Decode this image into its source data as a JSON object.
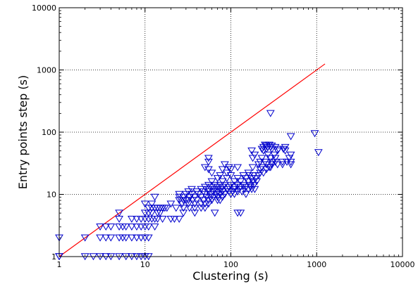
{
  "chart_data": {
    "type": "scatter",
    "xlabel": "Clustering (s)",
    "ylabel": "Entry points step (s)",
    "x_scale": "log",
    "y_scale": "log",
    "xlim": [
      1,
      10000
    ],
    "ylim": [
      1,
      10000
    ],
    "x_ticks": [
      "1",
      "10",
      "100",
      "1000",
      "10000"
    ],
    "y_ticks": [
      "1",
      "10",
      "100",
      "1000",
      "10000"
    ],
    "grid": true,
    "marker": "triangle-down",
    "colors": {
      "points": "#0000cc",
      "reference_line": "#ff0000"
    },
    "reference_line": {
      "x": [
        1,
        1250
      ],
      "y": [
        1,
        1250
      ]
    },
    "points": [
      [
        1,
        1
      ],
      [
        1,
        1
      ],
      [
        1,
        2
      ],
      [
        2,
        1
      ],
      [
        2,
        2
      ],
      [
        2.5,
        1
      ],
      [
        3,
        1
      ],
      [
        3.5,
        1
      ],
      [
        4,
        1
      ],
      [
        5,
        1
      ],
      [
        6,
        1
      ],
      [
        7,
        1
      ],
      [
        8,
        1
      ],
      [
        9,
        1
      ],
      [
        10,
        1
      ],
      [
        11,
        1
      ],
      [
        3,
        2
      ],
      [
        3.5,
        2
      ],
      [
        4,
        2
      ],
      [
        5,
        2
      ],
      [
        5.5,
        2
      ],
      [
        6,
        2
      ],
      [
        7,
        2
      ],
      [
        8,
        2
      ],
      [
        9,
        2
      ],
      [
        10,
        2
      ],
      [
        11,
        2
      ],
      [
        3,
        3
      ],
      [
        3.5,
        3
      ],
      [
        4,
        3
      ],
      [
        5,
        3
      ],
      [
        5.5,
        3
      ],
      [
        6,
        3
      ],
      [
        7,
        3
      ],
      [
        8,
        3
      ],
      [
        9,
        3
      ],
      [
        10,
        3
      ],
      [
        11,
        3
      ],
      [
        13,
        3
      ],
      [
        5,
        4
      ],
      [
        7,
        4
      ],
      [
        8,
        4
      ],
      [
        9,
        4
      ],
      [
        10,
        4
      ],
      [
        11,
        4
      ],
      [
        12,
        4
      ],
      [
        13,
        4
      ],
      [
        14,
        4
      ],
      [
        16,
        4
      ],
      [
        20,
        4
      ],
      [
        22,
        4
      ],
      [
        25,
        4
      ],
      [
        5,
        5
      ],
      [
        10,
        5
      ],
      [
        11,
        5
      ],
      [
        12,
        5
      ],
      [
        14,
        5
      ],
      [
        15,
        5
      ],
      [
        28,
        5
      ],
      [
        38,
        5
      ],
      [
        65,
        5
      ],
      [
        120,
        5
      ],
      [
        130,
        5
      ],
      [
        11,
        6
      ],
      [
        12,
        6
      ],
      [
        13,
        6
      ],
      [
        14,
        6
      ],
      [
        15,
        6
      ],
      [
        16,
        6
      ],
      [
        17,
        6
      ],
      [
        18,
        6
      ],
      [
        23,
        6
      ],
      [
        28,
        6
      ],
      [
        33,
        6
      ],
      [
        38,
        6
      ],
      [
        45,
        6
      ],
      [
        50,
        6
      ],
      [
        10,
        7
      ],
      [
        12,
        7
      ],
      [
        20,
        7
      ],
      [
        27,
        7
      ],
      [
        32,
        7
      ],
      [
        38,
        7
      ],
      [
        45,
        7
      ],
      [
        50,
        7
      ],
      [
        55,
        7
      ],
      [
        25,
        8
      ],
      [
        28,
        8
      ],
      [
        30,
        8
      ],
      [
        32,
        8
      ],
      [
        36,
        8
      ],
      [
        40,
        8
      ],
      [
        48,
        8
      ],
      [
        55,
        8
      ],
      [
        60,
        8
      ],
      [
        70,
        8
      ],
      [
        75,
        8
      ],
      [
        13,
        9
      ],
      [
        25,
        9
      ],
      [
        28,
        9
      ],
      [
        33,
        9
      ],
      [
        38,
        9
      ],
      [
        45,
        9
      ],
      [
        52,
        9
      ],
      [
        58,
        9
      ],
      [
        63,
        9
      ],
      [
        70,
        9
      ],
      [
        80,
        9
      ],
      [
        25,
        10
      ],
      [
        30,
        10
      ],
      [
        35,
        10
      ],
      [
        42,
        10
      ],
      [
        50,
        10
      ],
      [
        58,
        10
      ],
      [
        68,
        10
      ],
      [
        75,
        10
      ],
      [
        85,
        10
      ],
      [
        100,
        10
      ],
      [
        110,
        10
      ],
      [
        150,
        10
      ],
      [
        32,
        11
      ],
      [
        40,
        11
      ],
      [
        48,
        11
      ],
      [
        55,
        11
      ],
      [
        62,
        11
      ],
      [
        70,
        11
      ],
      [
        80,
        11
      ],
      [
        95,
        11
      ],
      [
        105,
        11
      ],
      [
        120,
        11
      ],
      [
        135,
        11
      ],
      [
        35,
        12
      ],
      [
        45,
        12
      ],
      [
        55,
        12
      ],
      [
        65,
        12
      ],
      [
        75,
        12
      ],
      [
        90,
        12
      ],
      [
        110,
        12
      ],
      [
        125,
        12
      ],
      [
        145,
        12
      ],
      [
        160,
        12
      ],
      [
        175,
        12
      ],
      [
        190,
        12
      ],
      [
        50,
        13
      ],
      [
        60,
        13
      ],
      [
        70,
        13
      ],
      [
        80,
        13
      ],
      [
        95,
        13
      ],
      [
        110,
        13
      ],
      [
        130,
        13
      ],
      [
        150,
        13
      ],
      [
        170,
        13
      ],
      [
        55,
        14
      ],
      [
        65,
        14
      ],
      [
        75,
        14
      ],
      [
        85,
        14
      ],
      [
        100,
        14
      ],
      [
        120,
        14
      ],
      [
        140,
        14
      ],
      [
        165,
        14
      ],
      [
        185,
        14
      ],
      [
        60,
        16
      ],
      [
        80,
        16
      ],
      [
        110,
        16
      ],
      [
        130,
        16
      ],
      [
        160,
        16
      ],
      [
        180,
        16
      ],
      [
        200,
        16
      ],
      [
        70,
        18
      ],
      [
        90,
        18
      ],
      [
        120,
        18
      ],
      [
        150,
        18
      ],
      [
        175,
        18
      ],
      [
        195,
        18
      ],
      [
        75,
        20
      ],
      [
        100,
        20
      ],
      [
        140,
        20
      ],
      [
        165,
        20
      ],
      [
        185,
        20
      ],
      [
        210,
        20
      ],
      [
        60,
        22
      ],
      [
        90,
        22
      ],
      [
        160,
        22
      ],
      [
        220,
        22
      ],
      [
        240,
        22
      ],
      [
        55,
        25
      ],
      [
        80,
        25
      ],
      [
        100,
        25
      ],
      [
        220,
        25
      ],
      [
        260,
        25
      ],
      [
        50,
        27
      ],
      [
        95,
        27
      ],
      [
        120,
        27
      ],
      [
        180,
        27
      ],
      [
        230,
        27
      ],
      [
        280,
        27
      ],
      [
        290,
        27
      ],
      [
        85,
        30
      ],
      [
        210,
        30
      ],
      [
        260,
        30
      ],
      [
        300,
        30
      ],
      [
        350,
        30
      ],
      [
        400,
        30
      ],
      [
        500,
        30
      ],
      [
        55,
        33
      ],
      [
        220,
        33
      ],
      [
        250,
        33
      ],
      [
        300,
        33
      ],
      [
        330,
        33
      ],
      [
        400,
        33
      ],
      [
        450,
        33
      ],
      [
        500,
        33
      ],
      [
        55,
        38
      ],
      [
        180,
        38
      ],
      [
        230,
        38
      ],
      [
        290,
        38
      ],
      [
        330,
        38
      ],
      [
        480,
        38
      ],
      [
        190,
        43
      ],
      [
        270,
        43
      ],
      [
        320,
        43
      ],
      [
        500,
        43
      ],
      [
        175,
        50
      ],
      [
        240,
        50
      ],
      [
        350,
        50
      ],
      [
        430,
        50
      ],
      [
        1050,
        47
      ],
      [
        230,
        53
      ],
      [
        260,
        53
      ],
      [
        300,
        53
      ],
      [
        360,
        53
      ],
      [
        410,
        53
      ],
      [
        240,
        57
      ],
      [
        270,
        57
      ],
      [
        290,
        57
      ],
      [
        330,
        57
      ],
      [
        430,
        57
      ],
      [
        260,
        60
      ],
      [
        300,
        60
      ],
      [
        250,
        62
      ],
      [
        280,
        62
      ],
      [
        500,
        85
      ],
      [
        950,
        95
      ],
      [
        290,
        200
      ]
    ]
  }
}
